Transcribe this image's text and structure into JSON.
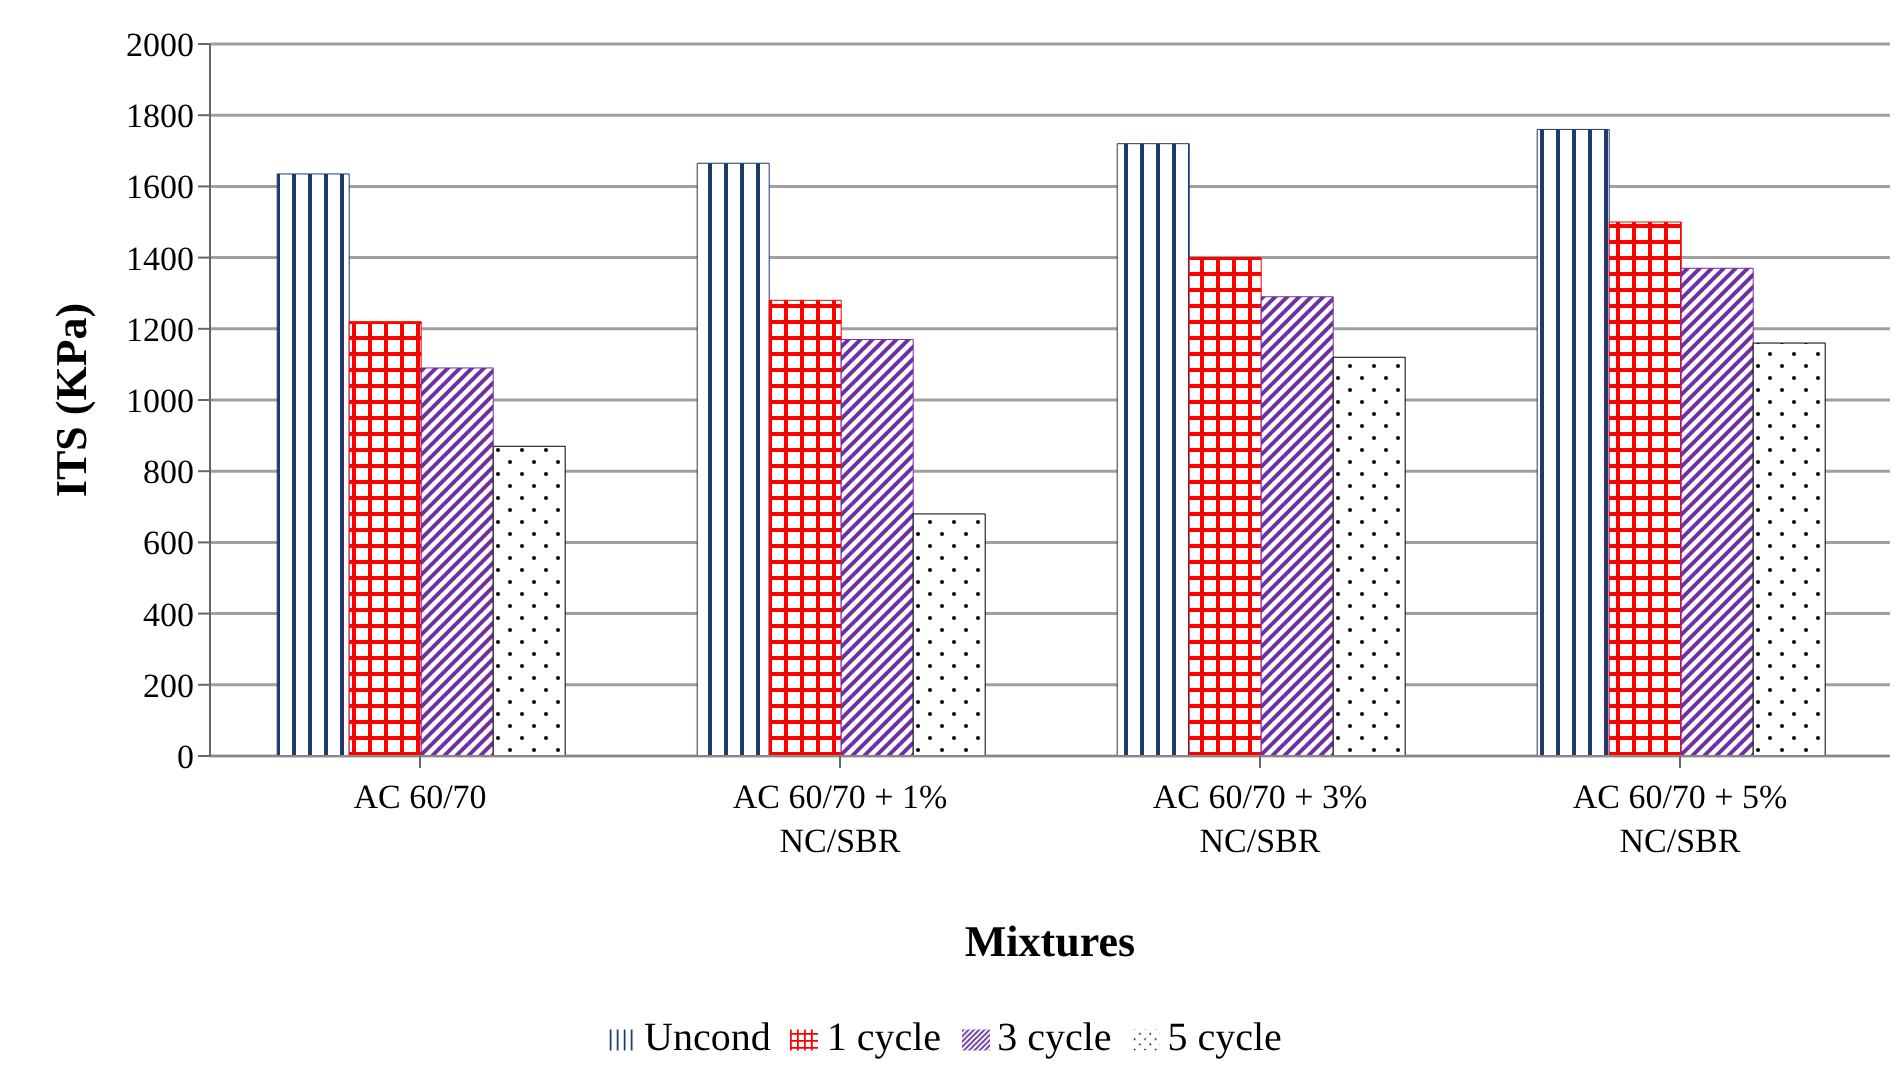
{
  "chart_data": {
    "type": "bar",
    "xlabel": "Mixtures",
    "ylabel": "ITS (KPa)",
    "categories": [
      "AC 60/70",
      "AC 60/70 + 1% NC/SBR",
      "AC 60/70 + 3% NC/SBR",
      "AC 60/70 + 5% NC/SBR"
    ],
    "series": [
      {
        "name": "Uncond",
        "color": "#1f3a6e",
        "values": [
          1635,
          1665,
          1720,
          1760
        ]
      },
      {
        "name": "1 cycle",
        "color": "#ff0000",
        "values": [
          1220,
          1280,
          1400,
          1500
        ]
      },
      {
        "name": "3 cycle",
        "color": "#7030a0",
        "values": [
          1090,
          1170,
          1290,
          1370
        ]
      },
      {
        "name": "5 cycle",
        "color": "#000000",
        "values": [
          870,
          680,
          1120,
          1160
        ]
      }
    ],
    "ylim": [
      0,
      2000
    ],
    "yticks": [
      0,
      200,
      400,
      600,
      800,
      1000,
      1200,
      1400,
      1600,
      1800,
      2000
    ],
    "grid": "y",
    "legend": "bottom"
  }
}
